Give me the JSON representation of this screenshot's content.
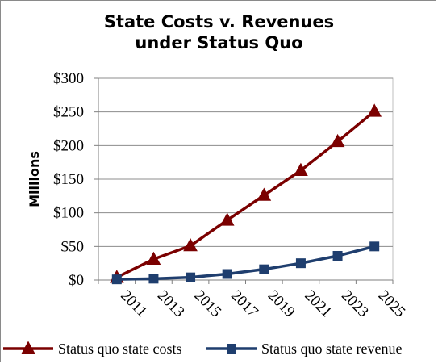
{
  "chart_data": {
    "type": "line",
    "title_lines": [
      "State Costs v. Revenues",
      "under Status Quo"
    ],
    "ylabel": "Millions",
    "xlabel": "",
    "y_tick_labels": [
      "$0",
      "$50",
      "$100",
      "$150",
      "$200",
      "$250",
      "$300"
    ],
    "y_ticks": [
      0,
      50,
      100,
      150,
      200,
      250,
      300
    ],
    "ylim": [
      0,
      300
    ],
    "x": [
      "2011",
      "2013",
      "2015",
      "2017",
      "2019",
      "2021",
      "2023",
      "2025"
    ],
    "grid": "horizontal",
    "legend_position": "bottom",
    "series": [
      {
        "name": "Status quo state costs",
        "marker": "triangle",
        "color": "#7b0000",
        "values": [
          4,
          31,
          51,
          89,
          126,
          163,
          206,
          251
        ]
      },
      {
        "name": "Status quo state revenue",
        "marker": "square",
        "color": "#1f3e6e",
        "values": [
          1,
          2,
          4,
          9,
          16,
          25,
          36,
          50
        ]
      }
    ]
  }
}
